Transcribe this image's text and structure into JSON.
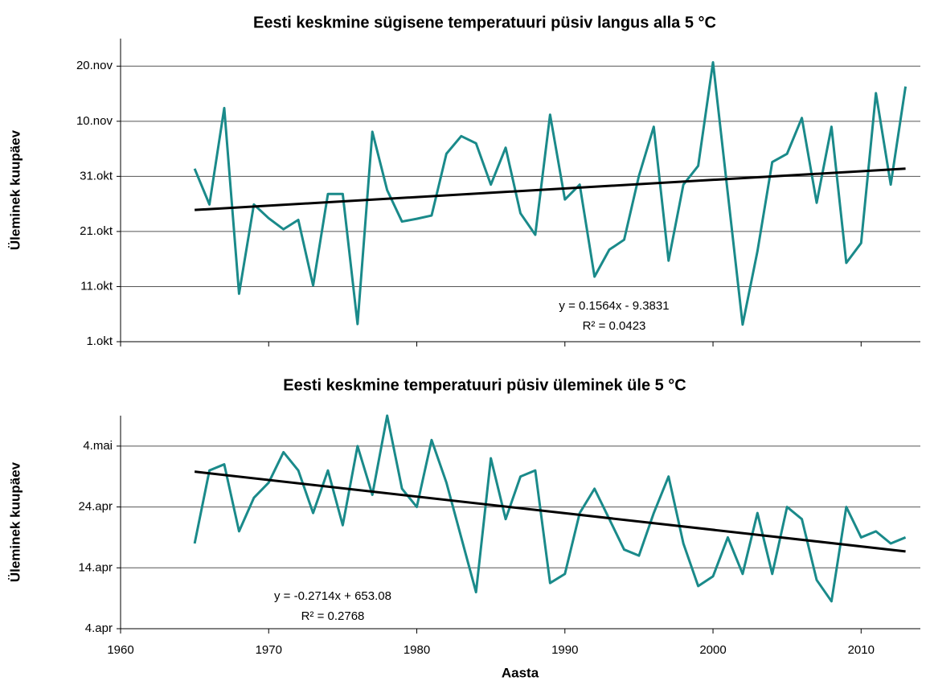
{
  "chart_data": [
    {
      "type": "line",
      "title": "Eesti keskmine sügisene temperatuuri püsiv langus alla 5 °C",
      "ylabel": "Üleminek kuupäev",
      "x": [
        1965,
        1966,
        1967,
        1968,
        1969,
        1970,
        1971,
        1972,
        1973,
        1974,
        1975,
        1976,
        1977,
        1978,
        1979,
        1980,
        1981,
        1982,
        1983,
        1984,
        1985,
        1986,
        1987,
        1988,
        1989,
        1990,
        1991,
        1992,
        1993,
        1994,
        1995,
        1996,
        1997,
        1998,
        1999,
        2000,
        2001,
        2002,
        2003,
        2004,
        2005,
        2006,
        2007,
        2008,
        2009,
        2010,
        2011,
        2012,
        2013
      ],
      "series": [
        {
          "color": "#1a8a8a",
          "values": [
            305.4,
            298.9,
            316.4,
            282.7,
            298.9,
            296.4,
            294.4,
            296.1,
            284.2,
            300.8,
            300.8,
            277.2,
            312.1,
            301.5,
            295.8,
            296.3,
            296.9,
            308.1,
            311.3,
            310,
            302.5,
            309.2,
            297.3,
            293.4,
            315.2,
            299.8,
            302.5,
            285.8,
            290.7,
            292.5,
            304.1,
            313,
            288.7,
            302.5,
            305.9,
            324.7,
            300.9,
            277.1,
            290.4,
            306.6,
            308.1,
            314.6,
            299.2,
            313,
            288.3,
            291.9,
            319.1,
            302.5,
            320.3
          ]
        }
      ],
      "trendline": {
        "x": [
          1965,
          2013
        ],
        "values": [
          297.9,
          305.4
        ],
        "color": "#000000"
      },
      "annotation": [
        "y = 0.1564x - 9.3831",
        "R² = 0.0423"
      ],
      "xlim": [
        1960,
        2014
      ],
      "ylim": [
        274,
        329
      ],
      "yticks": [
        {
          "value": 274,
          "label": "1.okt"
        },
        {
          "value": 284,
          "label": "11.okt"
        },
        {
          "value": 294,
          "label": "21.okt"
        },
        {
          "value": 304,
          "label": "31.okt"
        },
        {
          "value": 314,
          "label": "10.nov"
        },
        {
          "value": 324,
          "label": "20.nov"
        }
      ],
      "grid": true
    },
    {
      "type": "line",
      "title": "Eesti keskmine temperatuuri püsiv üleminek üle 5 °C",
      "ylabel": "Üleminek kuupäev",
      "xlabel": "Aasta",
      "x": [
        1965,
        1966,
        1967,
        1968,
        1969,
        1970,
        1971,
        1972,
        1973,
        1974,
        1975,
        1976,
        1977,
        1978,
        1979,
        1980,
        1981,
        1982,
        1983,
        1984,
        1985,
        1986,
        1987,
        1988,
        1989,
        1990,
        1991,
        1992,
        1993,
        1994,
        1995,
        1996,
        1997,
        1998,
        1999,
        2000,
        2001,
        2002,
        2003,
        2004,
        2005,
        2006,
        2007,
        2008,
        2009,
        2010,
        2011,
        2012,
        2013
      ],
      "series": [
        {
          "color": "#1a8a8a",
          "values": [
            108,
            120,
            121,
            110,
            115.5,
            118,
            123,
            120,
            113,
            120,
            111,
            124,
            116,
            129,
            117,
            114,
            125,
            118,
            109,
            100,
            122,
            112,
            119,
            120,
            101.5,
            103,
            113,
            117,
            112,
            107,
            106,
            113,
            119,
            108,
            101,
            102.6,
            109,
            103,
            113,
            103,
            114,
            112,
            102,
            98.5,
            114,
            109,
            110,
            108,
            109
          ]
        }
      ],
      "trendline": {
        "x": [
          1965,
          2013
        ],
        "values": [
          119.8,
          106.7
        ],
        "color": "#000000"
      },
      "annotation": [
        "y = -0.2714x + 653.08",
        "R² = 0.2768"
      ],
      "xlim": [
        1960,
        2014
      ],
      "ylim": [
        94,
        129
      ],
      "xticks": [
        1960,
        1970,
        1980,
        1990,
        2000,
        2010
      ],
      "yticks": [
        {
          "value": 94,
          "label": "4.apr"
        },
        {
          "value": 104,
          "label": "14.apr"
        },
        {
          "value": 114,
          "label": "24.apr"
        },
        {
          "value": 124,
          "label": "4.mai"
        }
      ],
      "grid": true
    }
  ]
}
